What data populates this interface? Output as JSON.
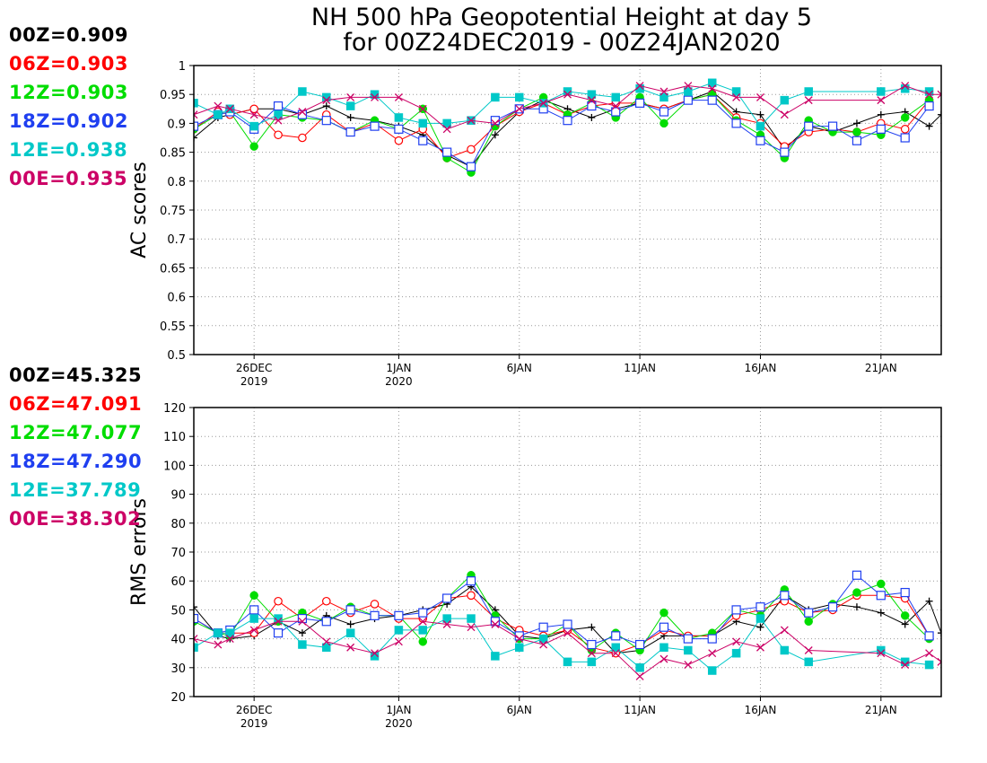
{
  "title": {
    "line1": "NH 500 hPa Geopotential Height at day 5",
    "line2": "for 00Z24DEC2019 - 00Z24JAN2020"
  },
  "colors": {
    "00Z": "#000000",
    "06Z": "#ff0000",
    "12Z": "#00dd00",
    "18Z": "#1f3ff0",
    "12E": "#00c8c8",
    "00E": "#cc0066"
  },
  "legend_top": [
    {
      "id": "00Z",
      "text": "00Z=0.909"
    },
    {
      "id": "06Z",
      "text": "06Z=0.903"
    },
    {
      "id": "12Z",
      "text": "12Z=0.903"
    },
    {
      "id": "18Z",
      "text": "18Z=0.902"
    },
    {
      "id": "12E",
      "text": "12E=0.938"
    },
    {
      "id": "00E",
      "text": "00E=0.935"
    }
  ],
  "legend_bottom": [
    {
      "id": "00Z",
      "text": "00Z=45.325"
    },
    {
      "id": "06Z",
      "text": "06Z=47.091"
    },
    {
      "id": "12Z",
      "text": "12Z=47.077"
    },
    {
      "id": "18Z",
      "text": "18Z=47.290"
    },
    {
      "id": "12E",
      "text": "12E=37.789"
    },
    {
      "id": "00E",
      "text": "00E=38.302"
    }
  ],
  "chart_data": [
    {
      "type": "line",
      "ylabel": "AC scores",
      "ylim": [
        0.5,
        1
      ],
      "yticks": [
        "0.5",
        "0.55",
        "0.6",
        "0.65",
        "0.7",
        "0.75",
        "0.8",
        "0.85",
        "0.9",
        "0.95",
        "1"
      ],
      "xlim": [
        23.5,
        54.5
      ],
      "xticks": [
        {
          "x": 26,
          "line1": "26DEC",
          "line2": "2019"
        },
        {
          "x": 32,
          "line1": "1JAN",
          "line2": "2020"
        },
        {
          "x": 37,
          "line1": "6JAN",
          "line2": ""
        },
        {
          "x": 42,
          "line1": "11JAN",
          "line2": ""
        },
        {
          "x": 47,
          "line1": "16JAN",
          "line2": ""
        },
        {
          "x": 52,
          "line1": "21JAN",
          "line2": ""
        }
      ],
      "grid": true,
      "series": [
        {
          "name": "00Z",
          "marker": "plus",
          "x": [
            23.5,
            24.5,
            25,
            26,
            27,
            28,
            29,
            30,
            31,
            32,
            33,
            34,
            35,
            36,
            37,
            38,
            39,
            40,
            41,
            42,
            43,
            44,
            45,
            46,
            47,
            48,
            49,
            50,
            51,
            52,
            53,
            54,
            54.5
          ],
          "values": [
            0.875,
            0.91,
            0.915,
            0.925,
            0.925,
            0.915,
            0.93,
            0.91,
            0.905,
            0.895,
            0.88,
            0.845,
            0.825,
            0.88,
            0.92,
            0.94,
            0.925,
            0.91,
            0.925,
            0.935,
            0.925,
            0.94,
            0.955,
            0.92,
            0.915,
            0.855,
            0.895,
            0.885,
            0.9,
            0.915,
            0.92,
            0.895,
            0.915
          ]
        },
        {
          "name": "06Z",
          "marker": "circle",
          "x": [
            23.5,
            24.5,
            25,
            26,
            27,
            28,
            29,
            30,
            31,
            32,
            33,
            34,
            35,
            36,
            37,
            38,
            39,
            40,
            41,
            42,
            43,
            44,
            45,
            46,
            47,
            48,
            49,
            50,
            51,
            52,
            53,
            54
          ],
          "values": [
            0.89,
            0.92,
            0.915,
            0.925,
            0.88,
            0.875,
            0.915,
            0.885,
            0.9,
            0.87,
            0.89,
            0.84,
            0.855,
            0.895,
            0.92,
            0.935,
            0.915,
            0.93,
            0.935,
            0.935,
            0.925,
            0.94,
            0.95,
            0.91,
            0.9,
            0.86,
            0.885,
            0.89,
            0.885,
            0.9,
            0.89,
            0.94
          ]
        },
        {
          "name": "12Z",
          "marker": "dot",
          "x": [
            23.5,
            24.5,
            25,
            26,
            27,
            28,
            29,
            30,
            31,
            32,
            33,
            34,
            35,
            36,
            37,
            38,
            39,
            40,
            41,
            42,
            43,
            44,
            45,
            46,
            47,
            48,
            49,
            50,
            51,
            52,
            53,
            54
          ],
          "values": [
            0.89,
            0.915,
            0.92,
            0.86,
            0.915,
            0.91,
            0.905,
            0.885,
            0.905,
            0.89,
            0.925,
            0.84,
            0.815,
            0.895,
            0.925,
            0.945,
            0.915,
            0.935,
            0.91,
            0.945,
            0.9,
            0.94,
            0.95,
            0.905,
            0.88,
            0.84,
            0.905,
            0.885,
            0.885,
            0.88,
            0.91,
            0.94
          ]
        },
        {
          "name": "18Z",
          "marker": "square",
          "x": [
            23.5,
            24.5,
            25,
            26,
            27,
            28,
            29,
            30,
            31,
            32,
            33,
            34,
            35,
            36,
            37,
            38,
            39,
            40,
            41,
            42,
            43,
            44,
            45,
            46,
            47,
            48,
            49,
            50,
            51,
            52,
            53,
            54
          ],
          "values": [
            0.895,
            0.915,
            0.92,
            0.89,
            0.93,
            0.915,
            0.905,
            0.885,
            0.895,
            0.89,
            0.87,
            0.85,
            0.825,
            0.905,
            0.925,
            0.925,
            0.905,
            0.93,
            0.92,
            0.935,
            0.92,
            0.94,
            0.94,
            0.9,
            0.87,
            0.85,
            0.895,
            0.895,
            0.87,
            0.89,
            0.875,
            0.93
          ]
        },
        {
          "name": "12E",
          "marker": "filledsquare",
          "x": [
            23.5,
            24.5,
            25,
            26,
            27,
            28,
            29,
            30,
            31,
            32,
            33,
            34,
            35,
            36,
            37,
            38,
            39,
            40,
            41,
            42,
            43,
            44,
            45,
            46,
            47,
            48,
            49,
            52,
            53,
            54
          ],
          "values": [
            0.935,
            0.915,
            0.925,
            0.895,
            0.915,
            0.955,
            0.945,
            0.93,
            0.95,
            0.91,
            0.9,
            0.9,
            0.905,
            0.945,
            0.945,
            0.935,
            0.955,
            0.95,
            0.945,
            0.96,
            0.945,
            0.955,
            0.97,
            0.955,
            0.895,
            0.94,
            0.955,
            0.955,
            0.96,
            0.955
          ]
        },
        {
          "name": "00E",
          "marker": "x",
          "x": [
            23.5,
            24.5,
            25,
            26,
            27,
            28,
            29,
            30,
            31,
            32,
            33,
            34,
            35,
            36,
            37,
            38,
            39,
            40,
            41,
            42,
            43,
            44,
            45,
            46,
            47,
            48,
            49,
            52,
            53,
            54,
            54.5
          ],
          "values": [
            0.915,
            0.93,
            0.925,
            0.915,
            0.905,
            0.92,
            0.94,
            0.945,
            0.945,
            0.945,
            0.925,
            0.89,
            0.905,
            0.9,
            0.925,
            0.935,
            0.95,
            0.94,
            0.93,
            0.965,
            0.955,
            0.965,
            0.96,
            0.945,
            0.945,
            0.915,
            0.94,
            0.94,
            0.965,
            0.95,
            0.95
          ]
        }
      ]
    },
    {
      "type": "line",
      "ylabel": "RMS errors",
      "ylim": [
        20,
        120
      ],
      "yticks": [
        "20",
        "30",
        "40",
        "50",
        "60",
        "70",
        "80",
        "90",
        "100",
        "110",
        "120"
      ],
      "xlim": [
        23.5,
        54.5
      ],
      "xticks": [
        {
          "x": 26,
          "line1": "26DEC",
          "line2": "2019"
        },
        {
          "x": 32,
          "line1": "1JAN",
          "line2": "2020"
        },
        {
          "x": 37,
          "line1": "6JAN",
          "line2": ""
        },
        {
          "x": 42,
          "line1": "11JAN",
          "line2": ""
        },
        {
          "x": 47,
          "line1": "16JAN",
          "line2": ""
        },
        {
          "x": 52,
          "line1": "21JAN",
          "line2": ""
        }
      ],
      "grid": true,
      "series": [
        {
          "name": "00Z",
          "marker": "plus",
          "x": [
            23.5,
            24.5,
            25,
            26,
            27,
            28,
            29,
            30,
            31,
            32,
            33,
            34,
            35,
            36,
            37,
            38,
            39,
            40,
            41,
            42,
            43,
            44,
            45,
            46,
            47,
            48,
            49,
            50,
            51,
            52,
            53,
            54,
            54.5
          ],
          "values": [
            51,
            41,
            40,
            41,
            46,
            42,
            48,
            45,
            47,
            48,
            50,
            52,
            58,
            50,
            41,
            40,
            43,
            44,
            35,
            36,
            41,
            41,
            41,
            46,
            44,
            55,
            50,
            52,
            51,
            49,
            45,
            53,
            42
          ]
        },
        {
          "name": "06Z",
          "marker": "circle",
          "x": [
            23.5,
            24.5,
            25,
            26,
            27,
            28,
            29,
            30,
            31,
            32,
            33,
            34,
            35,
            36,
            37,
            38,
            39,
            40,
            41,
            42,
            43,
            44,
            45,
            46,
            47,
            48,
            49,
            50,
            51,
            52,
            53,
            54
          ],
          "values": [
            47,
            42,
            42,
            42,
            53,
            47,
            53,
            49,
            52,
            47,
            47,
            54,
            55,
            47,
            43,
            41,
            43,
            37,
            35,
            38,
            43,
            41,
            41,
            48,
            50,
            53,
            49,
            50,
            55,
            55,
            54,
            41
          ]
        },
        {
          "name": "12Z",
          "marker": "dot",
          "x": [
            23.5,
            24.5,
            25,
            26,
            27,
            28,
            29,
            30,
            31,
            32,
            33,
            34,
            35,
            36,
            37,
            38,
            39,
            40,
            41,
            42,
            43,
            44,
            45,
            46,
            47,
            48,
            49,
            50,
            51,
            52,
            53,
            54
          ],
          "values": [
            46,
            42,
            41,
            55,
            46,
            49,
            46,
            51,
            48,
            48,
            39,
            54,
            62,
            48,
            40,
            40,
            45,
            36,
            42,
            36,
            49,
            40,
            42,
            50,
            48,
            57,
            46,
            52,
            56,
            59,
            48,
            40
          ]
        },
        {
          "name": "18Z",
          "marker": "square",
          "x": [
            23.5,
            24.5,
            25,
            26,
            27,
            28,
            29,
            30,
            31,
            32,
            33,
            34,
            35,
            36,
            37,
            38,
            39,
            40,
            41,
            42,
            43,
            44,
            45,
            46,
            47,
            48,
            49,
            50,
            51,
            52,
            53,
            54
          ],
          "values": [
            47,
            42,
            43,
            50,
            42,
            47,
            46,
            50,
            48,
            48,
            49,
            54,
            60,
            46,
            41,
            44,
            45,
            38,
            41,
            38,
            44,
            40,
            40,
            50,
            51,
            55,
            49,
            51,
            62,
            55,
            56,
            41
          ]
        },
        {
          "name": "12E",
          "marker": "filledsquare",
          "x": [
            23.5,
            24.5,
            25,
            26,
            27,
            28,
            29,
            30,
            31,
            32,
            33,
            34,
            35,
            36,
            37,
            38,
            39,
            40,
            41,
            42,
            43,
            44,
            45,
            46,
            47,
            48,
            49,
            52,
            53,
            54
          ],
          "values": [
            37,
            42,
            42,
            47,
            47,
            38,
            37,
            42,
            34,
            43,
            43,
            47,
            47,
            34,
            37,
            40,
            32,
            32,
            37,
            30,
            37,
            36,
            29,
            35,
            47,
            36,
            32,
            36,
            32,
            31
          ]
        },
        {
          "name": "00E",
          "marker": "x",
          "x": [
            23.5,
            24.5,
            25,
            26,
            27,
            28,
            29,
            30,
            31,
            32,
            33,
            34,
            35,
            36,
            37,
            38,
            39,
            40,
            41,
            42,
            43,
            44,
            45,
            46,
            47,
            48,
            49,
            52,
            53,
            54,
            54.5
          ],
          "values": [
            40,
            38,
            40,
            43,
            46,
            46,
            39,
            37,
            35,
            39,
            46,
            45,
            44,
            45,
            40,
            38,
            42,
            35,
            35,
            27,
            33,
            31,
            35,
            39,
            37,
            43,
            36,
            35,
            31,
            35,
            32
          ]
        }
      ]
    }
  ]
}
